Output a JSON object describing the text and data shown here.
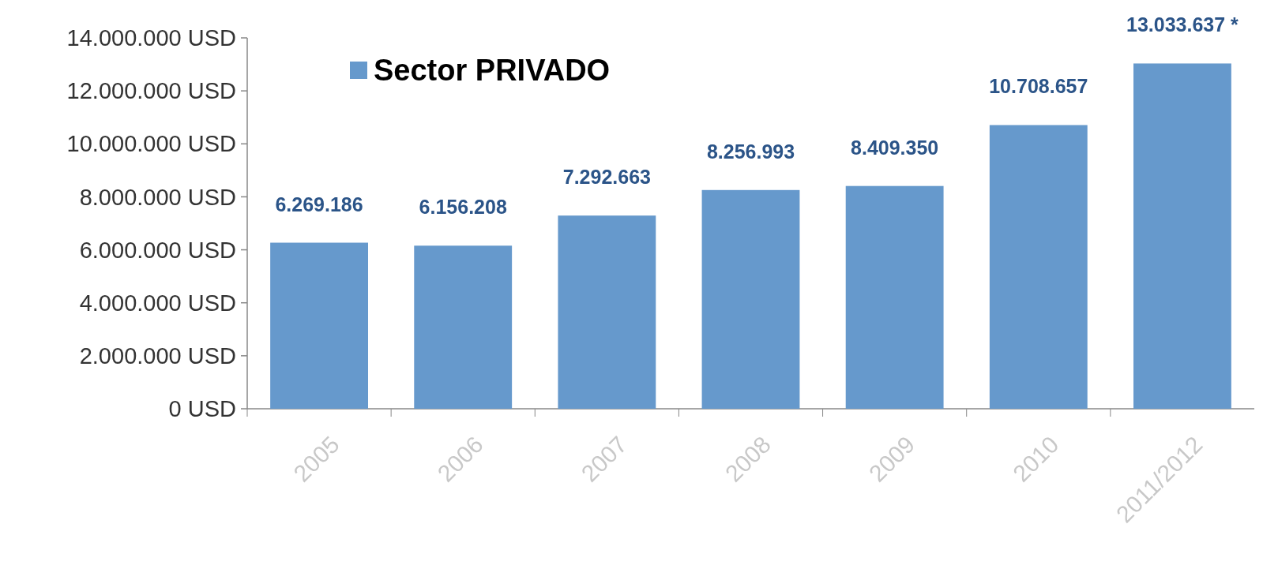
{
  "chart_data": {
    "type": "bar",
    "categories": [
      "2005",
      "2006",
      "2007",
      "2008",
      "2009",
      "2010",
      "2011/2012"
    ],
    "series": [
      {
        "name": "Sector PRIVADO",
        "color": "#6699cc",
        "values": [
          6269186,
          6156208,
          7292663,
          8256993,
          8409350,
          10708657,
          13033637
        ],
        "value_labels": [
          "6.269.186",
          "6.156.208",
          "7.292.663",
          "8.256.993",
          "8.409.350",
          "10.708.657",
          "13.033.637 *"
        ]
      }
    ],
    "ylim": [
      0,
      14000000
    ],
    "yticks": [
      {
        "value": 0,
        "label": "0 USD"
      },
      {
        "value": 2000000,
        "label": "2.000.000 USD"
      },
      {
        "value": 4000000,
        "label": "4.000.000 USD"
      },
      {
        "value": 6000000,
        "label": "6.000.000 USD"
      },
      {
        "value": 8000000,
        "label": "8.000.000 USD"
      },
      {
        "value": 10000000,
        "label": "10.000.000 USD"
      },
      {
        "value": 12000000,
        "label": "12.000.000 USD"
      },
      {
        "value": 14000000,
        "label": "14.000.000 USD"
      }
    ],
    "legend": "top left",
    "grid": false
  }
}
